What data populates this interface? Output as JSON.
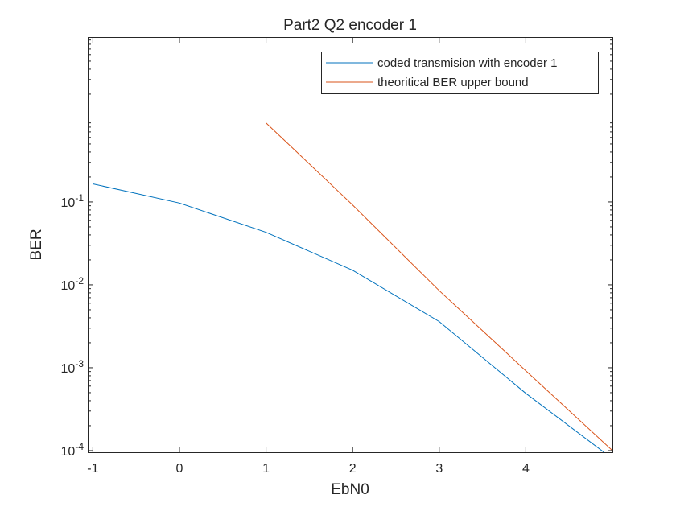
{
  "chart_data": {
    "type": "line",
    "title": "Part2 Q2 encoder 1",
    "xlabel": "EbN0",
    "ylabel": "BER",
    "xlim": [
      -1.05,
      5
    ],
    "ylim_log10": [
      -4.02,
      0.98
    ],
    "yscale": "log",
    "grid": false,
    "legend_position": "top-right",
    "x_ticks": [
      -1,
      0,
      1,
      2,
      3,
      4
    ],
    "x_tick_labels": [
      "-1",
      "0",
      "1",
      "2",
      "3",
      "4"
    ],
    "y_ticks_exp": [
      -1,
      -2,
      -3,
      -4
    ],
    "y_tick_base": "10",
    "y_tick_exponents": [
      "-1",
      "-2",
      "-3",
      "-4"
    ],
    "series": [
      {
        "name": "coded transmision with encoder 1",
        "color": "#0072BD",
        "x": [
          -1,
          0,
          1,
          2,
          3,
          4,
          4.9
        ],
        "y": [
          0.165,
          0.097,
          0.043,
          0.015,
          0.0036,
          0.00049,
          9.6e-05
        ]
      },
      {
        "name": "theoritical BER upper bound",
        "color": "#D95319",
        "x": [
          1,
          2,
          3,
          4,
          5
        ],
        "y": [
          0.9,
          0.092,
          0.0085,
          0.00092,
          0.0001
        ]
      }
    ]
  }
}
